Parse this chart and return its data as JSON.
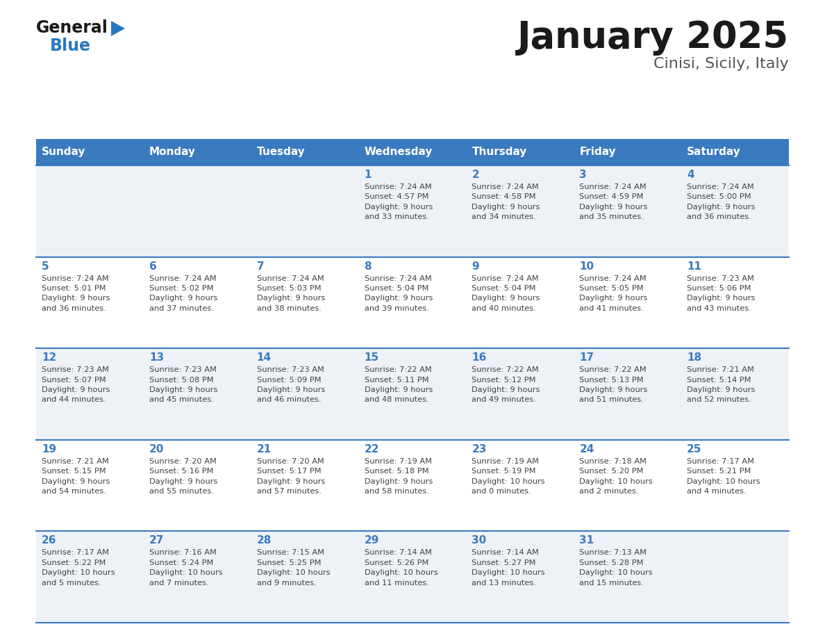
{
  "title": "January 2025",
  "subtitle": "Cinisi, Sicily, Italy",
  "days_of_week": [
    "Sunday",
    "Monday",
    "Tuesday",
    "Wednesday",
    "Thursday",
    "Friday",
    "Saturday"
  ],
  "header_bg": "#3a7abf",
  "header_text": "#ffffff",
  "day_num_color": "#3a7abf",
  "cell_text_color": "#404040",
  "row_bg_even": "#eef2f7",
  "row_bg_odd": "#ffffff",
  "grid_line_color": "#3a7abf",
  "logo_general_color": "#1a1a1a",
  "logo_blue_color": "#2878c0",
  "weeks": [
    [
      {
        "day": "",
        "info": ""
      },
      {
        "day": "",
        "info": ""
      },
      {
        "day": "",
        "info": ""
      },
      {
        "day": "1",
        "info": "Sunrise: 7:24 AM\nSunset: 4:57 PM\nDaylight: 9 hours\nand 33 minutes."
      },
      {
        "day": "2",
        "info": "Sunrise: 7:24 AM\nSunset: 4:58 PM\nDaylight: 9 hours\nand 34 minutes."
      },
      {
        "day": "3",
        "info": "Sunrise: 7:24 AM\nSunset: 4:59 PM\nDaylight: 9 hours\nand 35 minutes."
      },
      {
        "day": "4",
        "info": "Sunrise: 7:24 AM\nSunset: 5:00 PM\nDaylight: 9 hours\nand 36 minutes."
      }
    ],
    [
      {
        "day": "5",
        "info": "Sunrise: 7:24 AM\nSunset: 5:01 PM\nDaylight: 9 hours\nand 36 minutes."
      },
      {
        "day": "6",
        "info": "Sunrise: 7:24 AM\nSunset: 5:02 PM\nDaylight: 9 hours\nand 37 minutes."
      },
      {
        "day": "7",
        "info": "Sunrise: 7:24 AM\nSunset: 5:03 PM\nDaylight: 9 hours\nand 38 minutes."
      },
      {
        "day": "8",
        "info": "Sunrise: 7:24 AM\nSunset: 5:04 PM\nDaylight: 9 hours\nand 39 minutes."
      },
      {
        "day": "9",
        "info": "Sunrise: 7:24 AM\nSunset: 5:04 PM\nDaylight: 9 hours\nand 40 minutes."
      },
      {
        "day": "10",
        "info": "Sunrise: 7:24 AM\nSunset: 5:05 PM\nDaylight: 9 hours\nand 41 minutes."
      },
      {
        "day": "11",
        "info": "Sunrise: 7:23 AM\nSunset: 5:06 PM\nDaylight: 9 hours\nand 43 minutes."
      }
    ],
    [
      {
        "day": "12",
        "info": "Sunrise: 7:23 AM\nSunset: 5:07 PM\nDaylight: 9 hours\nand 44 minutes."
      },
      {
        "day": "13",
        "info": "Sunrise: 7:23 AM\nSunset: 5:08 PM\nDaylight: 9 hours\nand 45 minutes."
      },
      {
        "day": "14",
        "info": "Sunrise: 7:23 AM\nSunset: 5:09 PM\nDaylight: 9 hours\nand 46 minutes."
      },
      {
        "day": "15",
        "info": "Sunrise: 7:22 AM\nSunset: 5:11 PM\nDaylight: 9 hours\nand 48 minutes."
      },
      {
        "day": "16",
        "info": "Sunrise: 7:22 AM\nSunset: 5:12 PM\nDaylight: 9 hours\nand 49 minutes."
      },
      {
        "day": "17",
        "info": "Sunrise: 7:22 AM\nSunset: 5:13 PM\nDaylight: 9 hours\nand 51 minutes."
      },
      {
        "day": "18",
        "info": "Sunrise: 7:21 AM\nSunset: 5:14 PM\nDaylight: 9 hours\nand 52 minutes."
      }
    ],
    [
      {
        "day": "19",
        "info": "Sunrise: 7:21 AM\nSunset: 5:15 PM\nDaylight: 9 hours\nand 54 minutes."
      },
      {
        "day": "20",
        "info": "Sunrise: 7:20 AM\nSunset: 5:16 PM\nDaylight: 9 hours\nand 55 minutes."
      },
      {
        "day": "21",
        "info": "Sunrise: 7:20 AM\nSunset: 5:17 PM\nDaylight: 9 hours\nand 57 minutes."
      },
      {
        "day": "22",
        "info": "Sunrise: 7:19 AM\nSunset: 5:18 PM\nDaylight: 9 hours\nand 58 minutes."
      },
      {
        "day": "23",
        "info": "Sunrise: 7:19 AM\nSunset: 5:19 PM\nDaylight: 10 hours\nand 0 minutes."
      },
      {
        "day": "24",
        "info": "Sunrise: 7:18 AM\nSunset: 5:20 PM\nDaylight: 10 hours\nand 2 minutes."
      },
      {
        "day": "25",
        "info": "Sunrise: 7:17 AM\nSunset: 5:21 PM\nDaylight: 10 hours\nand 4 minutes."
      }
    ],
    [
      {
        "day": "26",
        "info": "Sunrise: 7:17 AM\nSunset: 5:22 PM\nDaylight: 10 hours\nand 5 minutes."
      },
      {
        "day": "27",
        "info": "Sunrise: 7:16 AM\nSunset: 5:24 PM\nDaylight: 10 hours\nand 7 minutes."
      },
      {
        "day": "28",
        "info": "Sunrise: 7:15 AM\nSunset: 5:25 PM\nDaylight: 10 hours\nand 9 minutes."
      },
      {
        "day": "29",
        "info": "Sunrise: 7:14 AM\nSunset: 5:26 PM\nDaylight: 10 hours\nand 11 minutes."
      },
      {
        "day": "30",
        "info": "Sunrise: 7:14 AM\nSunset: 5:27 PM\nDaylight: 10 hours\nand 13 minutes."
      },
      {
        "day": "31",
        "info": "Sunrise: 7:13 AM\nSunset: 5:28 PM\nDaylight: 10 hours\nand 15 minutes."
      },
      {
        "day": "",
        "info": ""
      }
    ]
  ]
}
